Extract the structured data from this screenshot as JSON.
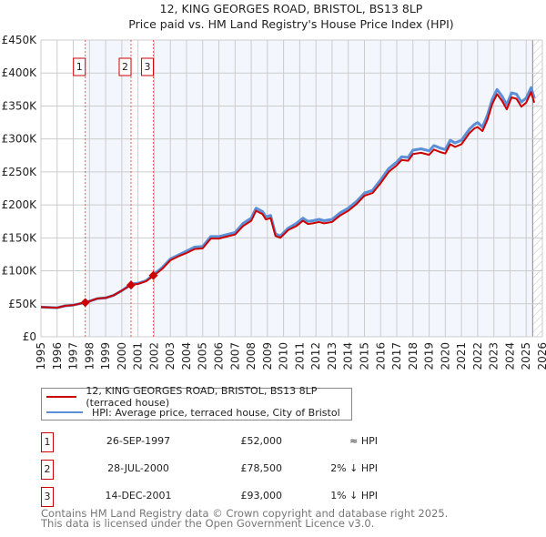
{
  "chart_data": {
    "type": "line",
    "title": "12, KING GEORGES ROAD, BRISTOL, BS13 8LP",
    "subtitle": "Price paid vs. HM Land Registry's House Price Index (HPI)",
    "xlim": [
      1995,
      2026
    ],
    "ylim": [
      0,
      450000
    ],
    "y_ticks": [
      0,
      50000,
      100000,
      150000,
      200000,
      250000,
      300000,
      350000,
      400000,
      450000
    ],
    "y_tick_labels": [
      "£0",
      "£50K",
      "£100K",
      "£150K",
      "£200K",
      "£250K",
      "£300K",
      "£350K",
      "£400K",
      "£450K"
    ],
    "x_tick_labels": [
      "1995",
      "1996",
      "1997",
      "1998",
      "1999",
      "2000",
      "2001",
      "2002",
      "2003",
      "2004",
      "2005",
      "2006",
      "2007",
      "2008",
      "2009",
      "2010",
      "2011",
      "2012",
      "2013",
      "2014",
      "2015",
      "2016",
      "2017",
      "2018",
      "2019",
      "2020",
      "2021",
      "2022",
      "2023",
      "2024",
      "2025",
      "2026"
    ],
    "grid": true,
    "forecast_start": 2025.4,
    "x": [
      1995,
      1996,
      1996.5,
      1997,
      1997.75,
      1998,
      1998.5,
      1999,
      1999.5,
      2000,
      2000.6,
      2001,
      2001.5,
      2002,
      2002.5,
      2003,
      2003.5,
      2004,
      2004.5,
      2005,
      2005.5,
      2006,
      2006.5,
      2007,
      2007.5,
      2008,
      2008.3,
      2008.7,
      2008.9,
      2009.2,
      2009.5,
      2009.8,
      2010.3,
      2010.8,
      2011.2,
      2011.5,
      2011.8,
      2012.2,
      2012.5,
      2013,
      2013.5,
      2014,
      2014.5,
      2015,
      2015.5,
      2016,
      2016.5,
      2017,
      2017.3,
      2017.7,
      2018,
      2018.5,
      2019,
      2019.3,
      2019.7,
      2020,
      2020.3,
      2020.6,
      2021,
      2021.5,
      2021.8,
      2022,
      2022.3,
      2022.6,
      2022.9,
      2023.2,
      2023.5,
      2023.8,
      2024.1,
      2024.4,
      2024.7,
      2025,
      2025.3,
      2025.5
    ],
    "series": [
      {
        "name": "HPI: Average price, terraced house, City of Bristol",
        "color": "#5b8fd6",
        "unit": "thousands GBP",
        "values": [
          45,
          44,
          47,
          48,
          52,
          54,
          58,
          59,
          63,
          70,
          80,
          81,
          85,
          95,
          105,
          118,
          124,
          130,
          136,
          137,
          152,
          152,
          155,
          158,
          172,
          180,
          195,
          190,
          182,
          184,
          156,
          153,
          165,
          172,
          180,
          175,
          176,
          178,
          176,
          178,
          188,
          195,
          205,
          218,
          222,
          238,
          255,
          265,
          273,
          272,
          283,
          285,
          282,
          290,
          286,
          284,
          298,
          294,
          298,
          315,
          322,
          325,
          318,
          336,
          360,
          375,
          365,
          352,
          370,
          368,
          356,
          362,
          378,
          362
        ]
      },
      {
        "name": "12, KING GEORGES ROAD, BRISTOL, BS13 8LP (terraced house)",
        "color": "#cc0000",
        "unit": "thousands GBP",
        "values": [
          45,
          44,
          47,
          48,
          52,
          54,
          58,
          59,
          63,
          70,
          79,
          80,
          84,
          93,
          103,
          116,
          122,
          127,
          133,
          134,
          149,
          149,
          152,
          155,
          168,
          176,
          191,
          186,
          178,
          180,
          153,
          150,
          162,
          168,
          176,
          171,
          172,
          174,
          172,
          174,
          184,
          191,
          201,
          214,
          218,
          233,
          250,
          260,
          268,
          267,
          277,
          279,
          276,
          284,
          280,
          278,
          292,
          288,
          292,
          309,
          316,
          318,
          312,
          329,
          353,
          368,
          358,
          345,
          363,
          361,
          349,
          355,
          371,
          355
        ]
      }
    ],
    "sales": [
      {
        "n": "1",
        "x": 1997.74,
        "price": 52000
      },
      {
        "n": "2",
        "x": 2000.57,
        "price": 78500
      },
      {
        "n": "3",
        "x": 2001.95,
        "price": 93000
      }
    ]
  },
  "legend": {
    "property": "12, KING GEORGES ROAD, BRISTOL, BS13 8LP (terraced house)",
    "hpi": "HPI: Average price, terraced house, City of Bristol"
  },
  "transactions": [
    {
      "n": "1",
      "date": "26-SEP-1997",
      "price": "£52,000",
      "rel": "≈ HPI"
    },
    {
      "n": "2",
      "date": "28-JUL-2000",
      "price": "£78,500",
      "rel": "2% ↓ HPI"
    },
    {
      "n": "3",
      "date": "14-DEC-2001",
      "price": "£93,000",
      "rel": "1% ↓ HPI"
    }
  ],
  "footer": {
    "line1": "Contains HM Land Registry data © Crown copyright and database right 2025.",
    "line2": "This data is licensed under the Open Government Licence v3.0."
  }
}
